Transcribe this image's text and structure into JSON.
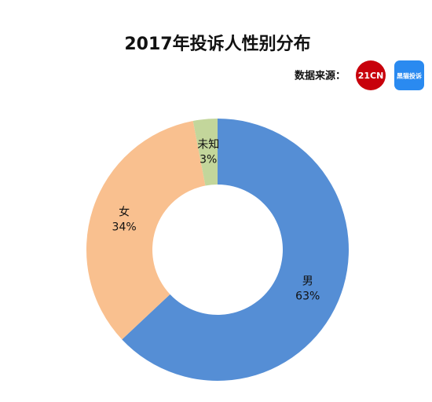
{
  "chart_data": {
    "type": "pie",
    "title": "2017年投诉人性别分布",
    "source": {
      "label": "数据来源：",
      "logos": [
        "21CN",
        "黑猫投诉"
      ]
    },
    "categories": [
      "男",
      "女",
      "未知"
    ],
    "values": [
      63,
      34,
      3
    ],
    "value_labels": [
      "63%",
      "34%",
      "3%"
    ],
    "colors": [
      "#558ed5",
      "#f9c08f",
      "#c3d69b"
    ]
  }
}
